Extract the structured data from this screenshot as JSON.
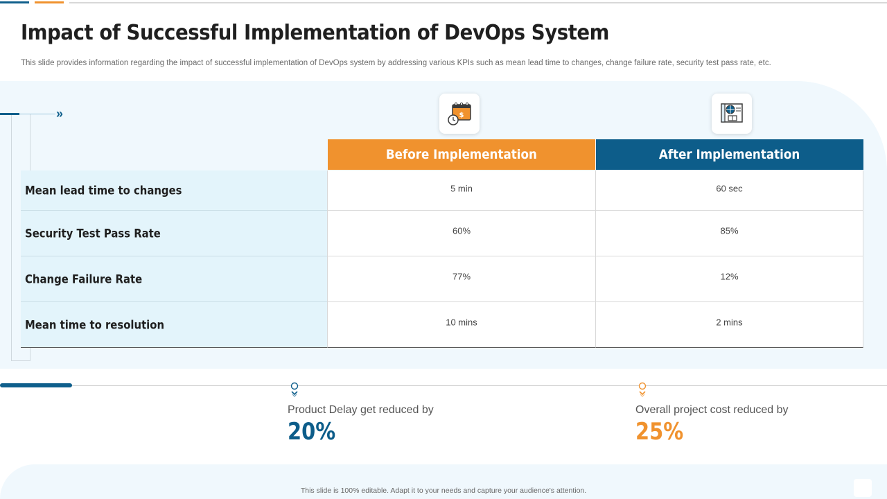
{
  "slide": {
    "title": "Impact of Successful Implementation of DevOps System",
    "subtitle": "This slide provides information regarding the impact of successful implementation of DevOps system by  addressing various KPIs such as mean lead time to changes, change failure rate, security test pass rate, etc.",
    "footer": "This slide is 100% editable.  Adapt it to your needs and capture your audience's attention."
  },
  "colors": {
    "before": "#f0922e",
    "after": "#0d5d8a",
    "label_bg": "#e3f4fb",
    "panel_bg": "#f0f8fd"
  },
  "icons": {
    "before": "calendar-money-clock-icon",
    "after": "blueprint-globe-icon",
    "nav": "double-chevron-right-icon",
    "pin": "location-pin-icon"
  },
  "table": {
    "headers": {
      "before": "Before  Implementation",
      "after": "After Implementation"
    },
    "rows": [
      {
        "label": "Mean lead time to changes",
        "before": "5 min",
        "after": "60 sec"
      },
      {
        "label": "Security Test Pass Rate",
        "before": "60%",
        "after": "85%"
      },
      {
        "label": "Change Failure Rate",
        "before": "77%",
        "after": "12%"
      },
      {
        "label": "Mean time to resolution",
        "before": "10 mins",
        "after": "2 mins"
      }
    ]
  },
  "stats": [
    {
      "label": "Product Delay get reduced by",
      "value": "20%"
    },
    {
      "label": "Overall project cost reduced by",
      "value": "25%"
    }
  ]
}
